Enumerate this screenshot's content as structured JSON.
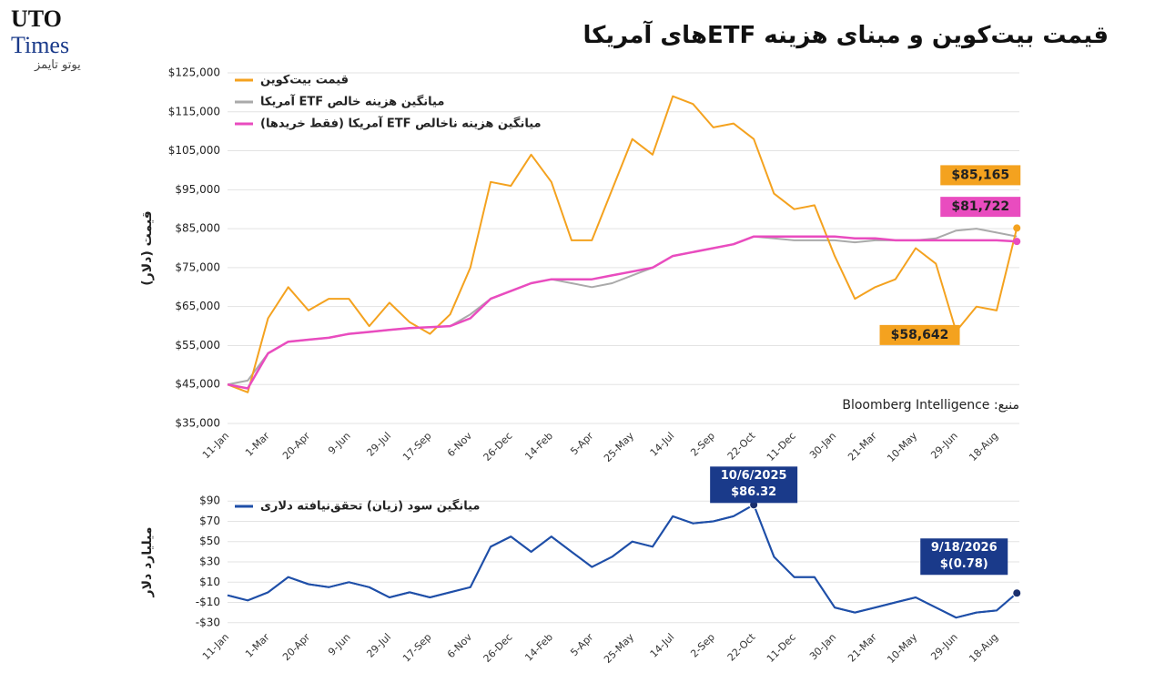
{
  "brand": {
    "line1": "UTO",
    "line2": "Times",
    "tagline": "یوتو تایمز"
  },
  "chart_data": [
    {
      "type": "line",
      "title": "قیمت بیت‌کوین و مبنای هزینه ETFهای آمریکا",
      "source": "منبع: Bloomberg Intelligence",
      "ylabel": "قیمت (دلار)",
      "grid": true,
      "legend": "top-left",
      "categories": [
        "11-Jan",
        null,
        "1-Mar",
        null,
        "20-Apr",
        null,
        "9-Jun",
        null,
        "29-Jul",
        null,
        "17-Sep",
        null,
        "6-Nov",
        null,
        "26-Dec",
        null,
        "14-Feb",
        null,
        "5-Apr",
        null,
        "25-May",
        null,
        "14-Jul",
        null,
        "2-Sep",
        null,
        "22-Oct",
        null,
        "11-Dec",
        null,
        "30-Jan",
        null,
        "21-Mar",
        null,
        "10-May",
        null,
        "29-Jun",
        null,
        "18-Aug",
        null
      ],
      "ylim": [
        35000,
        125000
      ],
      "yticks": [
        {
          "value": 35000,
          "label": "$35,000"
        },
        {
          "value": 45000,
          "label": "$45,000"
        },
        {
          "value": 55000,
          "label": "$55,000"
        },
        {
          "value": 65000,
          "label": "$65,000"
        },
        {
          "value": 75000,
          "label": "$75,000"
        },
        {
          "value": 85000,
          "label": "$85,000"
        },
        {
          "value": 95000,
          "label": "$95,000"
        },
        {
          "value": 105000,
          "label": "$105,000"
        },
        {
          "value": 115000,
          "label": "$115,000"
        },
        {
          "value": 125000,
          "label": "$125,000"
        }
      ],
      "series": [
        {
          "name": "قیمت بیت‌کوین",
          "color": "#f4a21f",
          "values": [
            45000,
            43000,
            62000,
            70000,
            64000,
            67000,
            67000,
            60000,
            66000,
            61000,
            58000,
            63000,
            75000,
            97000,
            96000,
            104000,
            97000,
            82000,
            82000,
            95000,
            108000,
            104000,
            119000,
            117000,
            111000,
            112000,
            108000,
            94000,
            90000,
            91000,
            78000,
            67000,
            70000,
            72000,
            80000,
            76000,
            58642,
            65000,
            64000,
            85165
          ],
          "value_labels": [
            null,
            null,
            null,
            null,
            null,
            null,
            null,
            null,
            null,
            null,
            null,
            null,
            null,
            null,
            null,
            null,
            null,
            null,
            null,
            null,
            null,
            null,
            null,
            null,
            null,
            null,
            null,
            null,
            null,
            null,
            null,
            null,
            null,
            null,
            null,
            null,
            "$58,642",
            null,
            null,
            "$85,165"
          ]
        },
        {
          "name": "میانگین هزینه خالص ETF آمریکا",
          "color": "#aaaaaa",
          "values": [
            45000,
            46000,
            53000,
            56000,
            56500,
            57000,
            58000,
            58500,
            59000,
            59500,
            59700,
            60000,
            63000,
            67000,
            69000,
            71000,
            72000,
            71000,
            70000,
            71000,
            73000,
            75000,
            78000,
            79000,
            80000,
            81000,
            83000,
            82500,
            82000,
            82000,
            82000,
            81500,
            82000,
            82000,
            82000,
            82500,
            84500,
            85000,
            84000,
            83000
          ]
        },
        {
          "name": "میانگین هزینه ناخالص ETF آمریکا (فقط خریدها)",
          "color": "#e94cbf",
          "values": [
            45000,
            44000,
            53000,
            56000,
            56500,
            57000,
            58000,
            58500,
            59000,
            59500,
            59700,
            60000,
            62000,
            67000,
            69000,
            71000,
            72000,
            72000,
            72000,
            73000,
            74000,
            75000,
            78000,
            79000,
            80000,
            81000,
            83000,
            83000,
            83000,
            83000,
            83000,
            82500,
            82500,
            82000,
            82000,
            82000,
            82000,
            82000,
            82000,
            81722
          ],
          "value_labels": [
            null,
            null,
            null,
            null,
            null,
            null,
            null,
            null,
            null,
            null,
            null,
            null,
            null,
            null,
            null,
            null,
            null,
            null,
            null,
            null,
            null,
            null,
            null,
            null,
            null,
            null,
            null,
            null,
            null,
            null,
            null,
            null,
            null,
            null,
            null,
            null,
            null,
            null,
            null,
            "$81,722"
          ]
        }
      ]
    },
    {
      "type": "line",
      "ylabel": "میلیارد دلار",
      "grid": true,
      "legend": "top-left",
      "categories": [
        "11-Jan",
        null,
        "1-Mar",
        null,
        "20-Apr",
        null,
        "9-Jun",
        null,
        "29-Jul",
        null,
        "17-Sep",
        null,
        "6-Nov",
        null,
        "26-Dec",
        null,
        "14-Feb",
        null,
        "5-Apr",
        null,
        "25-May",
        null,
        "14-Jul",
        null,
        "2-Sep",
        null,
        "22-Oct",
        null,
        "11-Dec",
        null,
        "30-Jan",
        null,
        "21-Mar",
        null,
        "10-May",
        null,
        "29-Jun",
        null,
        "18-Aug",
        null
      ],
      "ylim": [
        -32,
        92
      ],
      "yticks": [
        {
          "value": -30,
          "label": "-$30"
        },
        {
          "value": -10,
          "label": "-$10"
        },
        {
          "value": 10,
          "label": "$10"
        },
        {
          "value": 30,
          "label": "$30"
        },
        {
          "value": 50,
          "label": "$50"
        },
        {
          "value": 70,
          "label": "$70"
        },
        {
          "value": 90,
          "label": "$90"
        }
      ],
      "series": [
        {
          "name": "میانگین سود (زیان) تحقق‌نیافته دلاری",
          "color": "#1f4fa8",
          "values": [
            -3,
            -8,
            0,
            15,
            8,
            5,
            10,
            5,
            -5,
            0,
            -5,
            0,
            5,
            45,
            55,
            40,
            55,
            40,
            25,
            35,
            50,
            45,
            75,
            68,
            70,
            75,
            86.32,
            35,
            15,
            15,
            -15,
            -20,
            -15,
            -10,
            -5,
            -15,
            -25,
            -20,
            -18,
            -0.78
          ]
        }
      ],
      "annotations": [
        {
          "date": "10/6/2025",
          "label": "$86.32",
          "value": 86.32
        },
        {
          "date": "9/18/2026",
          "label": "$(0.78)",
          "value": -0.78
        }
      ]
    }
  ]
}
